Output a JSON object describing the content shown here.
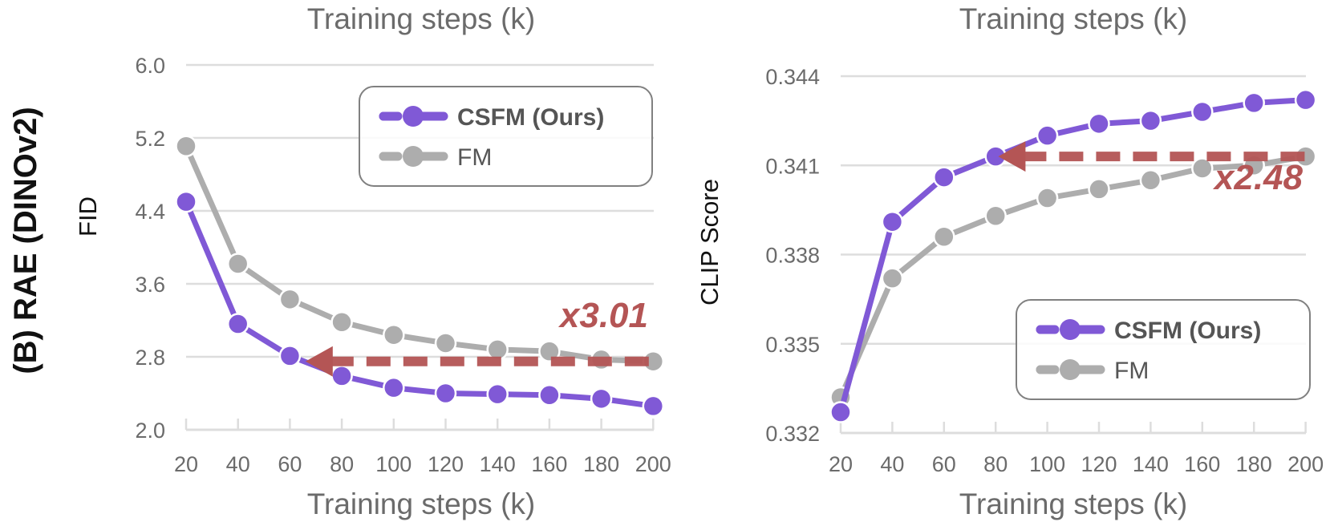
{
  "figure": {
    "panel_label": "(B) RAE (DINOv2)",
    "colors": {
      "csfm": "#8059d6",
      "fm": "#adadad",
      "arrow": "#b45555",
      "grid": "#dddddd",
      "legend_border": "#808080",
      "tick_text": "#6b6b6b"
    }
  },
  "chart_data": [
    {
      "type": "line",
      "title": "Training steps (k)",
      "xlabel": "Training steps (k)",
      "ylabel": "FID",
      "x": [
        20,
        40,
        60,
        80,
        100,
        120,
        140,
        160,
        180,
        200
      ],
      "x_tick_labels": [
        "20",
        "40",
        "60",
        "80",
        "100",
        "120",
        "140",
        "160",
        "180",
        "200"
      ],
      "y_tick_values": [
        2.0,
        2.8,
        3.6,
        4.4,
        5.2,
        6.0
      ],
      "y_tick_labels": [
        "2.0",
        "2.8",
        "3.6",
        "4.4",
        "5.2",
        "6.0"
      ],
      "ylim": [
        2.0,
        6.0
      ],
      "grid": true,
      "legend_position": "upper right",
      "series": [
        {
          "name": "CSFM (Ours)",
          "color": "#8059d6",
          "values": [
            4.5,
            3.16,
            2.81,
            2.59,
            2.46,
            2.4,
            2.39,
            2.38,
            2.34,
            2.26
          ]
        },
        {
          "name": "FM",
          "color": "#adadad",
          "values": [
            5.11,
            3.82,
            3.43,
            3.18,
            3.04,
            2.95,
            2.88,
            2.86,
            2.77,
            2.75
          ]
        }
      ],
      "annotation": {
        "text": "x3.01",
        "arrow_from_x": 200,
        "arrow_to_x": 66,
        "arrow_y": 2.75,
        "description": "FM reaches at 200k what CSFM reaches at ~66k"
      }
    },
    {
      "type": "line",
      "title": "Training steps (k)",
      "xlabel": "Training steps (k)",
      "ylabel": "CLIP Score",
      "x": [
        20,
        40,
        60,
        80,
        100,
        120,
        140,
        160,
        180,
        200
      ],
      "x_tick_labels": [
        "20",
        "40",
        "60",
        "80",
        "100",
        "120",
        "140",
        "160",
        "180",
        "200"
      ],
      "y_tick_values": [
        0.332,
        0.335,
        0.338,
        0.341,
        0.344
      ],
      "y_tick_labels": [
        "0.332",
        "0.335",
        "0.338",
        "0.341",
        "0.344"
      ],
      "ylim": [
        0.332,
        0.344
      ],
      "grid": true,
      "legend_position": "lower right",
      "series": [
        {
          "name": "CSFM (Ours)",
          "color": "#8059d6",
          "values": [
            0.3327,
            0.3391,
            0.3406,
            0.3413,
            0.342,
            0.3424,
            0.3425,
            0.3428,
            0.3431,
            0.3432
          ]
        },
        {
          "name": "FM",
          "color": "#adadad",
          "values": [
            0.3332,
            0.3372,
            0.3386,
            0.3393,
            0.3399,
            0.3402,
            0.3405,
            0.3409,
            0.341,
            0.3413
          ]
        }
      ],
      "annotation": {
        "text": "x2.48",
        "arrow_from_x": 200,
        "arrow_to_x": 81,
        "arrow_y": 0.3413,
        "description": "FM reaches at 200k what CSFM reaches at ~80k"
      }
    }
  ]
}
